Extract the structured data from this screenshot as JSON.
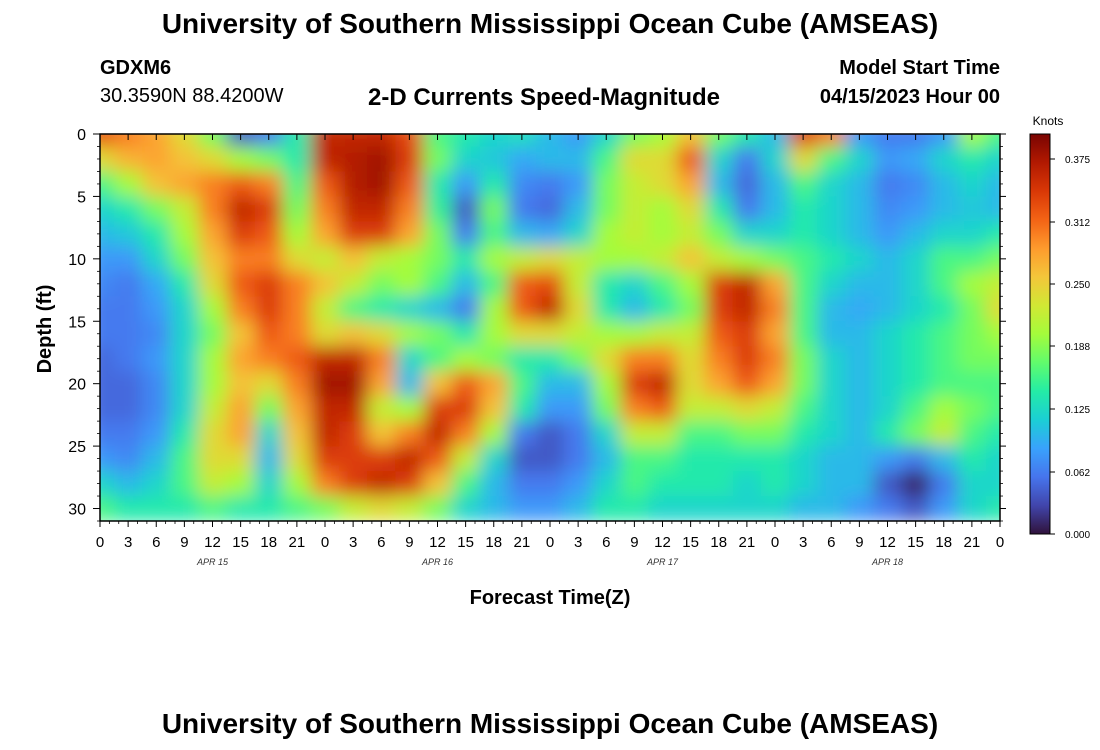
{
  "header": {
    "title": "University of Southern Mississippi Ocean Cube (AMSEAS)",
    "station_id": "GDXM6",
    "coordinates": "30.3590N  88.4200W",
    "subtitle": "2-D Currents Speed-Magnitude",
    "model_start_label": "Model Start Time",
    "model_start_value": "04/15/2023 Hour 00"
  },
  "footer": {
    "title": "University of Southern Mississippi Ocean Cube (AMSEAS)"
  },
  "chart_data": {
    "type": "heatmap",
    "xlabel": "Forecast Time(Z)",
    "ylabel": "Depth (ft)",
    "x_hours_range": [
      0,
      96
    ],
    "y_range": [
      0,
      31
    ],
    "y_inverted": true,
    "x_tick_labels": [
      "0",
      "3",
      "6",
      "9",
      "12",
      "15",
      "18",
      "21",
      "0",
      "3",
      "6",
      "9",
      "12",
      "15",
      "18",
      "21",
      "0",
      "3",
      "6",
      "9",
      "12",
      "15",
      "18",
      "21",
      "0",
      "3",
      "6",
      "9",
      "12",
      "15",
      "18",
      "21",
      "0"
    ],
    "y_tick_labels": [
      "0",
      "5",
      "10",
      "15",
      "20",
      "25",
      "30"
    ],
    "day_labels": [
      "APR 15",
      "APR 16",
      "APR 17",
      "APR 18"
    ],
    "colorbar": {
      "label": "Knots",
      "range": [
        0,
        0.4
      ],
      "tick_labels": [
        "0.375",
        "0.312",
        "0.250",
        "0.188",
        "0.125",
        "0.062",
        "0.000"
      ],
      "colormap": [
        "#30123b",
        "#4145ab",
        "#4675ed",
        "#39a2fc",
        "#1bcfd4",
        "#24eca6",
        "#61fc6c",
        "#a4fc3b",
        "#d1e834",
        "#f3c63a",
        "#fe9b2d",
        "#f36315",
        "#d93806",
        "#b11901",
        "#7a0402"
      ]
    },
    "depth_levels_ft": [
      0,
      2,
      4,
      6,
      8,
      10,
      12,
      14,
      16,
      18,
      20,
      22,
      24,
      26,
      28,
      30
    ],
    "time_columns": "every 3 hours, 33 columns from 0 to 96 h",
    "speed_knots": [
      [
        0.33,
        0.3,
        0.28,
        0.24,
        0.18,
        0.04,
        0.06,
        0.14,
        0.36,
        0.36,
        0.36,
        0.33,
        0.16,
        0.14,
        0.12,
        0.13,
        0.1,
        0.08,
        0.12,
        0.18,
        0.2,
        0.26,
        0.18,
        0.14,
        0.1,
        0.34,
        0.3,
        0.08,
        0.06,
        0.06,
        0.08,
        0.2,
        0.16
      ],
      [
        0.24,
        0.27,
        0.28,
        0.26,
        0.24,
        0.2,
        0.18,
        0.14,
        0.36,
        0.37,
        0.38,
        0.34,
        0.18,
        0.12,
        0.11,
        0.09,
        0.1,
        0.1,
        0.16,
        0.24,
        0.24,
        0.32,
        0.12,
        0.06,
        0.12,
        0.24,
        0.16,
        0.12,
        0.08,
        0.09,
        0.12,
        0.14,
        0.12
      ],
      [
        0.16,
        0.2,
        0.26,
        0.28,
        0.3,
        0.32,
        0.3,
        0.16,
        0.32,
        0.37,
        0.38,
        0.32,
        0.14,
        0.08,
        0.14,
        0.07,
        0.06,
        0.08,
        0.18,
        0.22,
        0.24,
        0.28,
        0.1,
        0.05,
        0.1,
        0.16,
        0.12,
        0.1,
        0.06,
        0.07,
        0.1,
        0.12,
        0.1
      ],
      [
        0.12,
        0.14,
        0.18,
        0.22,
        0.3,
        0.36,
        0.34,
        0.18,
        0.3,
        0.36,
        0.36,
        0.3,
        0.15,
        0.04,
        0.18,
        0.06,
        0.05,
        0.1,
        0.18,
        0.22,
        0.2,
        0.24,
        0.14,
        0.06,
        0.1,
        0.14,
        0.12,
        0.1,
        0.07,
        0.08,
        0.1,
        0.11,
        0.1
      ],
      [
        0.1,
        0.11,
        0.14,
        0.2,
        0.28,
        0.34,
        0.32,
        0.2,
        0.28,
        0.34,
        0.34,
        0.28,
        0.18,
        0.06,
        0.16,
        0.1,
        0.09,
        0.12,
        0.2,
        0.22,
        0.2,
        0.22,
        0.18,
        0.12,
        0.12,
        0.14,
        0.12,
        0.1,
        0.08,
        0.1,
        0.12,
        0.12,
        0.14
      ],
      [
        0.08,
        0.08,
        0.12,
        0.18,
        0.26,
        0.3,
        0.3,
        0.24,
        0.22,
        0.26,
        0.22,
        0.2,
        0.18,
        0.14,
        0.2,
        0.22,
        0.24,
        0.22,
        0.2,
        0.2,
        0.22,
        0.26,
        0.22,
        0.2,
        0.18,
        0.16,
        0.14,
        0.12,
        0.1,
        0.12,
        0.16,
        0.16,
        0.18
      ],
      [
        0.07,
        0.06,
        0.09,
        0.14,
        0.24,
        0.32,
        0.34,
        0.3,
        0.26,
        0.22,
        0.18,
        0.2,
        0.16,
        0.1,
        0.16,
        0.32,
        0.33,
        0.22,
        0.14,
        0.12,
        0.16,
        0.2,
        0.34,
        0.36,
        0.28,
        0.16,
        0.12,
        0.1,
        0.1,
        0.12,
        0.16,
        0.2,
        0.22
      ],
      [
        0.06,
        0.06,
        0.08,
        0.12,
        0.2,
        0.3,
        0.34,
        0.3,
        0.22,
        0.16,
        0.14,
        0.12,
        0.1,
        0.06,
        0.2,
        0.32,
        0.36,
        0.24,
        0.14,
        0.1,
        0.14,
        0.18,
        0.34,
        0.36,
        0.3,
        0.16,
        0.1,
        0.09,
        0.1,
        0.12,
        0.14,
        0.18,
        0.24
      ],
      [
        0.06,
        0.06,
        0.07,
        0.12,
        0.18,
        0.26,
        0.32,
        0.3,
        0.24,
        0.26,
        0.24,
        0.2,
        0.18,
        0.14,
        0.2,
        0.24,
        0.24,
        0.22,
        0.2,
        0.2,
        0.22,
        0.22,
        0.32,
        0.34,
        0.28,
        0.16,
        0.1,
        0.1,
        0.12,
        0.14,
        0.16,
        0.18,
        0.2
      ],
      [
        0.05,
        0.06,
        0.08,
        0.12,
        0.2,
        0.28,
        0.3,
        0.32,
        0.36,
        0.36,
        0.3,
        0.12,
        0.16,
        0.2,
        0.18,
        0.14,
        0.14,
        0.18,
        0.24,
        0.3,
        0.3,
        0.24,
        0.3,
        0.34,
        0.3,
        0.18,
        0.12,
        0.1,
        0.12,
        0.14,
        0.16,
        0.18,
        0.18
      ],
      [
        0.05,
        0.05,
        0.07,
        0.12,
        0.2,
        0.26,
        0.24,
        0.3,
        0.38,
        0.38,
        0.28,
        0.1,
        0.26,
        0.32,
        0.28,
        0.16,
        0.1,
        0.1,
        0.2,
        0.34,
        0.36,
        0.24,
        0.28,
        0.32,
        0.28,
        0.18,
        0.12,
        0.1,
        0.12,
        0.14,
        0.16,
        0.16,
        0.16
      ],
      [
        0.05,
        0.05,
        0.07,
        0.12,
        0.22,
        0.28,
        0.18,
        0.28,
        0.36,
        0.36,
        0.22,
        0.2,
        0.34,
        0.34,
        0.26,
        0.14,
        0.08,
        0.08,
        0.18,
        0.3,
        0.32,
        0.22,
        0.22,
        0.24,
        0.22,
        0.16,
        0.12,
        0.1,
        0.12,
        0.16,
        0.2,
        0.18,
        0.16
      ],
      [
        0.06,
        0.06,
        0.08,
        0.14,
        0.24,
        0.28,
        0.12,
        0.26,
        0.36,
        0.34,
        0.26,
        0.3,
        0.36,
        0.3,
        0.2,
        0.06,
        0.04,
        0.06,
        0.12,
        0.22,
        0.22,
        0.16,
        0.16,
        0.18,
        0.18,
        0.14,
        0.12,
        0.1,
        0.14,
        0.18,
        0.22,
        0.16,
        0.14
      ],
      [
        0.08,
        0.07,
        0.1,
        0.16,
        0.24,
        0.24,
        0.1,
        0.24,
        0.34,
        0.34,
        0.34,
        0.36,
        0.32,
        0.22,
        0.12,
        0.04,
        0.04,
        0.06,
        0.1,
        0.16,
        0.16,
        0.14,
        0.14,
        0.14,
        0.14,
        0.12,
        0.1,
        0.1,
        0.08,
        0.06,
        0.1,
        0.14,
        0.12
      ],
      [
        0.12,
        0.1,
        0.12,
        0.16,
        0.22,
        0.2,
        0.12,
        0.2,
        0.3,
        0.34,
        0.36,
        0.34,
        0.26,
        0.16,
        0.1,
        0.06,
        0.06,
        0.08,
        0.12,
        0.16,
        0.14,
        0.14,
        0.14,
        0.12,
        0.14,
        0.12,
        0.1,
        0.1,
        0.04,
        0.01,
        0.06,
        0.12,
        0.12
      ],
      [
        0.16,
        0.14,
        0.14,
        0.14,
        0.16,
        0.14,
        0.14,
        0.16,
        0.18,
        0.22,
        0.24,
        0.22,
        0.18,
        0.12,
        0.1,
        0.08,
        0.08,
        0.1,
        0.14,
        0.14,
        0.12,
        0.12,
        0.12,
        0.12,
        0.12,
        0.1,
        0.1,
        0.08,
        0.06,
        0.04,
        0.08,
        0.12,
        0.14
      ]
    ]
  }
}
